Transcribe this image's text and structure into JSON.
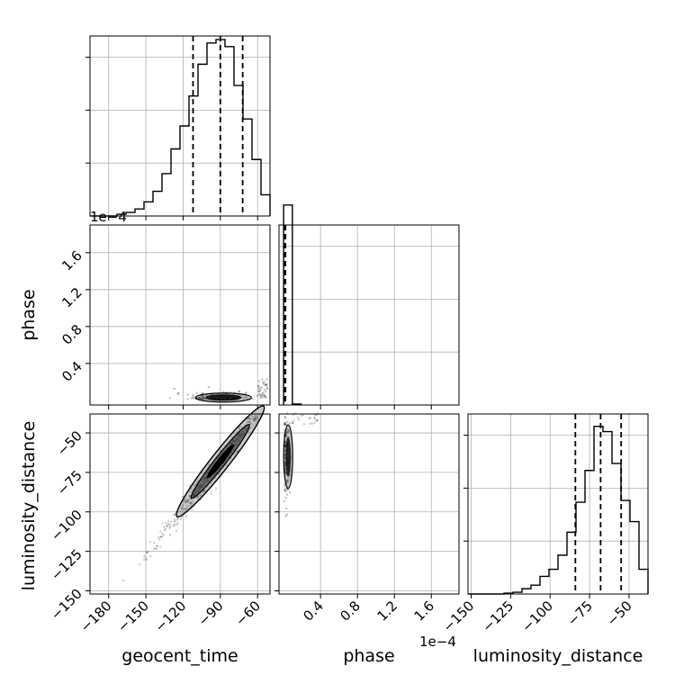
{
  "chart_data": {
    "type": "corner",
    "parameters": [
      "geocent_time",
      "phase",
      "luminosity_distance"
    ],
    "axis_labels": {
      "geocent_time": "geocent_time",
      "phase": "phase",
      "luminosity_distance": "luminosity_distance"
    },
    "offset_text": {
      "phase_y": "1e−4",
      "phase_x": "1e−4"
    },
    "grid": true,
    "quantile_lines_dashed": true,
    "ranges": {
      "geocent_time": [
        -195,
        -50
      ],
      "phase": [
        -0.05,
        1.9
      ],
      "luminosity_distance": [
        -152,
        -38
      ]
    },
    "ticks": {
      "geocent_time": [
        -180,
        -150,
        -120,
        -90,
        -60
      ],
      "geocent_time_labels": [
        "−180",
        "−150",
        "−120",
        "−90",
        "−60"
      ],
      "phase_x": [
        0.4,
        0.8,
        1.2,
        1.6
      ],
      "phase_x_labels": [
        "0.4",
        "0.8",
        "1.2",
        "1.6"
      ],
      "phase_y": [
        0.4,
        0.8,
        1.2,
        1.6
      ],
      "phase_y_labels": [
        "0.4",
        "0.8",
        "1.2",
        "1.6"
      ],
      "lumdist_x": [
        -150,
        -125,
        -100,
        -75,
        -50
      ],
      "lumdist_x_labels": [
        "−150",
        "−125",
        "−100",
        "−75",
        "−50"
      ],
      "lumdist_y": [
        -150,
        -125,
        -100,
        -75,
        -50
      ],
      "lumdist_y_labels": [
        "−150",
        "−125",
        "−100",
        "−75",
        "−50"
      ]
    },
    "histograms": {
      "geocent_time": {
        "bin_edges": [
          -195,
          -187.75,
          -180.5,
          -173.25,
          -166,
          -158.75,
          -151.5,
          -144.25,
          -137,
          -129.75,
          -122.5,
          -115.25,
          -108,
          -100.75,
          -93.5,
          -86.25,
          -79,
          -71.75,
          -64.5,
          -57.25,
          -50
        ],
        "counts": [
          0,
          0,
          0,
          0.01,
          0.02,
          0.04,
          0.08,
          0.14,
          0.24,
          0.38,
          0.51,
          0.68,
          0.86,
          0.98,
          1.0,
          0.96,
          0.74,
          0.55,
          0.32,
          0.12
        ],
        "quantiles": [
          -112,
          -90,
          -72
        ]
      },
      "phase": {
        "bin_edges": [
          0,
          0.095,
          0.19
        ],
        "counts": [
          1.0,
          0.005
        ],
        "quantiles": [
          0.004,
          0.01,
          0.02
        ]
      },
      "luminosity_distance": {
        "bin_edges": [
          -152,
          -146.3,
          -140.6,
          -134.9,
          -129.2,
          -123.5,
          -117.8,
          -112.1,
          -106.4,
          -100.7,
          -95,
          -89.3,
          -83.6,
          -77.9,
          -72.2,
          -66.5,
          -60.8,
          -55.1,
          -49.4,
          -43.7,
          -38
        ],
        "counts": [
          0,
          0,
          0,
          0,
          0.005,
          0.01,
          0.03,
          0.05,
          0.1,
          0.14,
          0.22,
          0.35,
          0.52,
          0.7,
          0.95,
          0.92,
          0.74,
          0.53,
          0.41,
          0.14
        ],
        "quantiles": [
          -84,
          -68,
          -55
        ]
      }
    },
    "contour_2d": {
      "time_vs_lumdist": {
        "relation": "luminosity_distance ≈ geocent_time + 22",
        "core_range_time": [
          -120,
          -60
        ],
        "scatter_range_time": [
          -180,
          -55
        ]
      },
      "time_vs_phase": {
        "core_time": [
          -110,
          -65
        ],
        "core_phase": 0.05
      },
      "phase_vs_lumdist": {
        "core_phase": 0.03,
        "core_lumdist": [
          -85,
          -45
        ]
      }
    }
  }
}
